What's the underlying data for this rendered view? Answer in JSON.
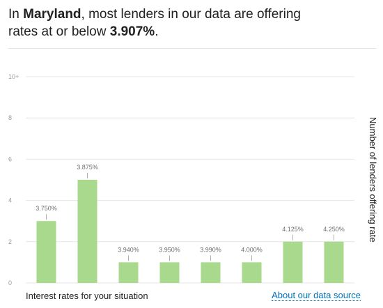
{
  "headline": {
    "prefix": "In ",
    "state": "Maryland",
    "middle": ", most lenders in our data are offering rates at or below ",
    "rate": "3.907%",
    "suffix": "."
  },
  "footer": {
    "xlabel": "Interest rates for your situation",
    "source_link": "About our data source"
  },
  "colors": {
    "bar": "#a8d98c",
    "link": "#0071bc"
  },
  "chart_data": {
    "type": "bar",
    "categories": [
      "3.750%",
      "3.875%",
      "3.940%",
      "3.950%",
      "3.990%",
      "4.000%",
      "4.125%",
      "4.250%"
    ],
    "values": [
      3,
      5,
      1,
      1,
      1,
      1,
      2,
      2
    ],
    "ylabel": "Number of lenders offering rate",
    "xlabel": "Interest rates for your situation",
    "ylim": [
      0,
      10
    ],
    "yticks": [
      "0",
      "2",
      "4",
      "6",
      "8",
      "10+"
    ],
    "grid": true
  }
}
